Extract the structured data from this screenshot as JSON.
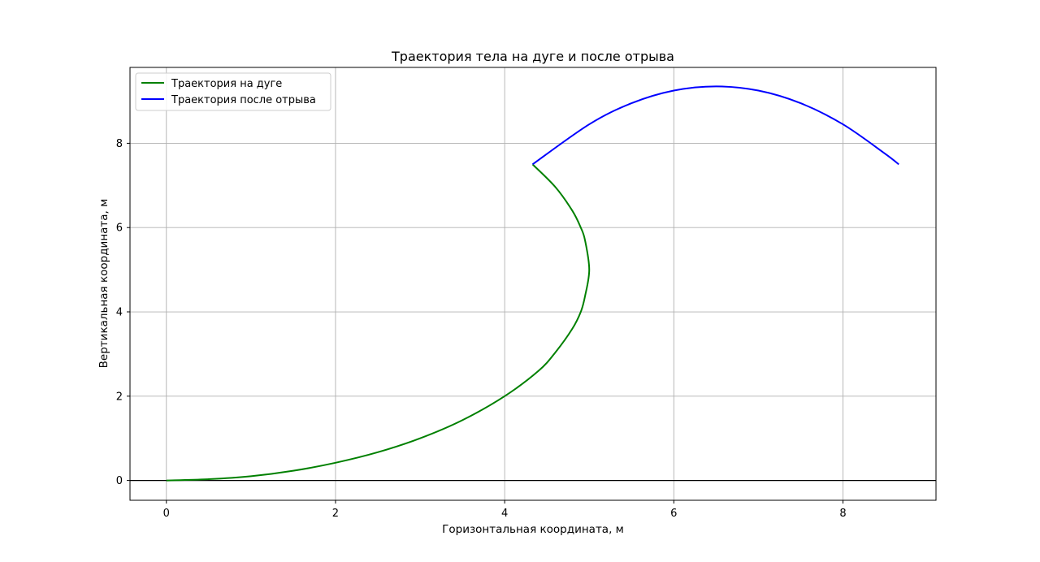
{
  "chart_data": {
    "type": "line",
    "title": "Траектория тела на дуге и после отрыва",
    "xlabel": "Горизонтальная координата, м",
    "ylabel": "Вертикальная координата, м",
    "xlim": [
      -0.43,
      9.1
    ],
    "ylim": [
      -0.47,
      9.8
    ],
    "xticks": [
      "0",
      "2",
      "4",
      "6",
      "8"
    ],
    "yticks": [
      "0",
      "2",
      "4",
      "6",
      "8"
    ],
    "grid": true,
    "legend_position": "upper-left",
    "baseline_y": 0,
    "series": [
      {
        "name": "Траектория на дуге",
        "color": "#008000",
        "x": [
          0,
          0.5,
          1.0,
          1.5,
          2.0,
          2.5,
          3.0,
          3.5,
          4.0,
          4.4,
          4.6,
          4.8,
          4.9,
          4.95,
          5.0,
          4.95,
          4.9,
          4.8,
          4.6,
          4.33
        ],
        "y": [
          0,
          0.03,
          0.1,
          0.23,
          0.42,
          0.67,
          1.0,
          1.43,
          2.0,
          2.6,
          3.04,
          3.6,
          4.0,
          4.37,
          5.0,
          5.7,
          6.0,
          6.4,
          6.96,
          7.5
        ]
      },
      {
        "name": "Траектория после отрыва",
        "color": "#0000ff",
        "x": [
          4.33,
          5.0,
          5.5,
          6.0,
          6.5,
          7.0,
          7.5,
          8.0,
          8.5,
          8.66
        ],
        "y": [
          7.5,
          8.45,
          8.95,
          9.25,
          9.35,
          9.25,
          8.95,
          8.45,
          7.75,
          7.5
        ]
      }
    ]
  }
}
